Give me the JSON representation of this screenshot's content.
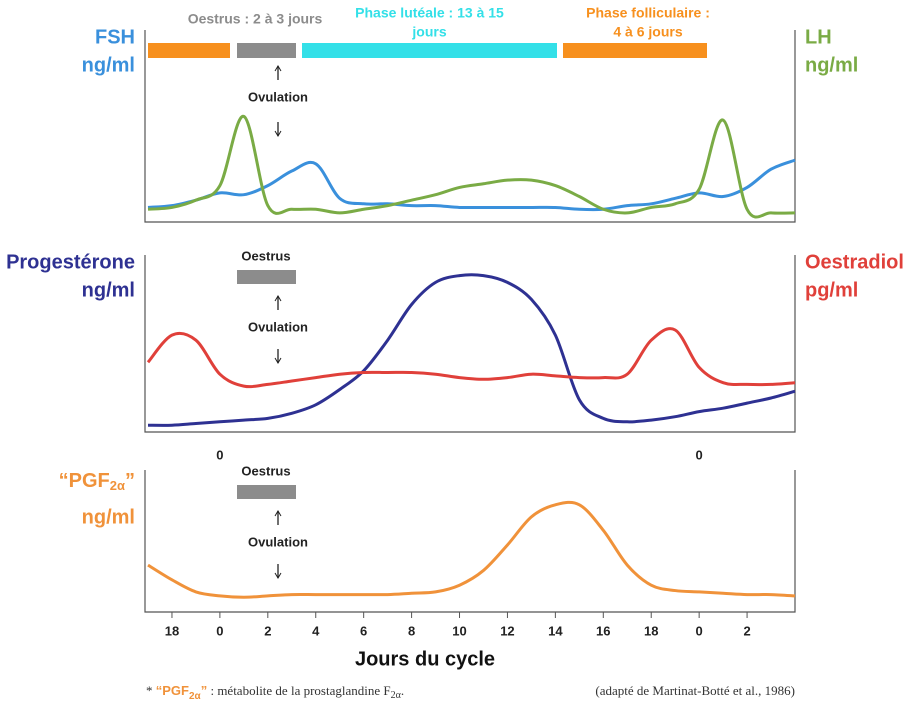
{
  "chart_data": [
    {
      "type": "line",
      "left_label": [
        "FSH",
        "ng/ml"
      ],
      "right_label": [
        "LH",
        "ng/ml"
      ],
      "phases": [
        {
          "label": [
            "Oestrus : 2 à 3 jours"
          ],
          "color": "#8c8c8c"
        },
        {
          "label": [
            "Phase lutéale : 13 à 15",
            "jours"
          ],
          "color": "#33e0e8"
        },
        {
          "label": [
            "Phase folliculaire :",
            "4 à 6 jours"
          ],
          "color": "#f7901e"
        }
      ],
      "annotation": "Ovulation",
      "ylim": [
        0,
        100
      ],
      "categories": [
        null,
        null,
        null,
        null,
        null,
        null,
        null,
        null,
        null,
        null,
        null,
        null,
        null,
        null,
        null,
        null,
        null,
        null,
        null,
        null,
        null,
        null,
        null,
        null,
        null,
        null,
        null,
        null
      ],
      "series": [
        {
          "name": "FSH",
          "color": "#3a90dc",
          "values": [
            8,
            9,
            12,
            16,
            15,
            20,
            28,
            32,
            13,
            10,
            10,
            9,
            9,
            8,
            8,
            8,
            8,
            8,
            7,
            7,
            9,
            10,
            13,
            16,
            14,
            19,
            29,
            34
          ]
        },
        {
          "name": "LH",
          "color": "#7aab45",
          "values": [
            7,
            8,
            12,
            20,
            58,
            9,
            7,
            7,
            5,
            7,
            9,
            12,
            15,
            19,
            21,
            23,
            23,
            20,
            14,
            7,
            5,
            8,
            10,
            18,
            56,
            7,
            5,
            5
          ]
        }
      ]
    },
    {
      "type": "line",
      "left_label": [
        "Progestérone",
        "ng/ml"
      ],
      "right_label": [
        "Oestradiol",
        "pg/ml"
      ],
      "oestrus": "Oestrus",
      "annotation": "Ovulation",
      "ylim": [
        0,
        100
      ],
      "categories": [
        null,
        null,
        null,
        "0",
        null,
        null,
        null,
        null,
        null,
        null,
        null,
        null,
        null,
        null,
        null,
        null,
        null,
        null,
        null,
        null,
        null,
        null,
        null,
        "0",
        null,
        null,
        null,
        null
      ],
      "series": [
        {
          "name": "Progestérone",
          "color": "#2e3192",
          "values": [
            4,
            4,
            5,
            6,
            7,
            8,
            11,
            16,
            25,
            36,
            54,
            75,
            88,
            92,
            92,
            88,
            78,
            57,
            19,
            8,
            6,
            7,
            9,
            12,
            14,
            17,
            20,
            24
          ]
        },
        {
          "name": "Oestradiol",
          "color": "#e0403a",
          "values": [
            41,
            57,
            54,
            34,
            27,
            28,
            30,
            32,
            34,
            35,
            35,
            35,
            34,
            32,
            31,
            32,
            34,
            33,
            32,
            32,
            34,
            54,
            60,
            38,
            29,
            28,
            28,
            29
          ]
        }
      ]
    },
    {
      "type": "line",
      "left_label": [
        "“PGF",
        "2α",
        "”",
        "ng/ml"
      ],
      "oestrus": "Oestrus",
      "annotation": "Ovulation",
      "x_label": "Jours du cycle",
      "ylim": [
        0,
        100
      ],
      "categories": [
        null,
        "18",
        null,
        "0",
        null,
        "2",
        null,
        "4",
        null,
        "6",
        null,
        "8",
        null,
        "10",
        null,
        "12",
        null,
        "14",
        null,
        "16",
        null,
        "18",
        null,
        "0",
        null,
        "2",
        null,
        null
      ],
      "series": [
        {
          "name": "PGF2α",
          "color": "#f0923a",
          "values": [
            35,
            24,
            15,
            12,
            11,
            12,
            13,
            13,
            13,
            13,
            13,
            14,
            15,
            20,
            31,
            50,
            71,
            80,
            80,
            61,
            35,
            20,
            16,
            15,
            14,
            13,
            13,
            12
          ]
        }
      ]
    }
  ],
  "footnote": [
    "* ",
    "“PGF",
    "2α",
    "”",
    " : métabolite de la prostaglandine F",
    "2α",
    "."
  ],
  "source": "(adapté de Martinat-Botté et al., 1986)"
}
